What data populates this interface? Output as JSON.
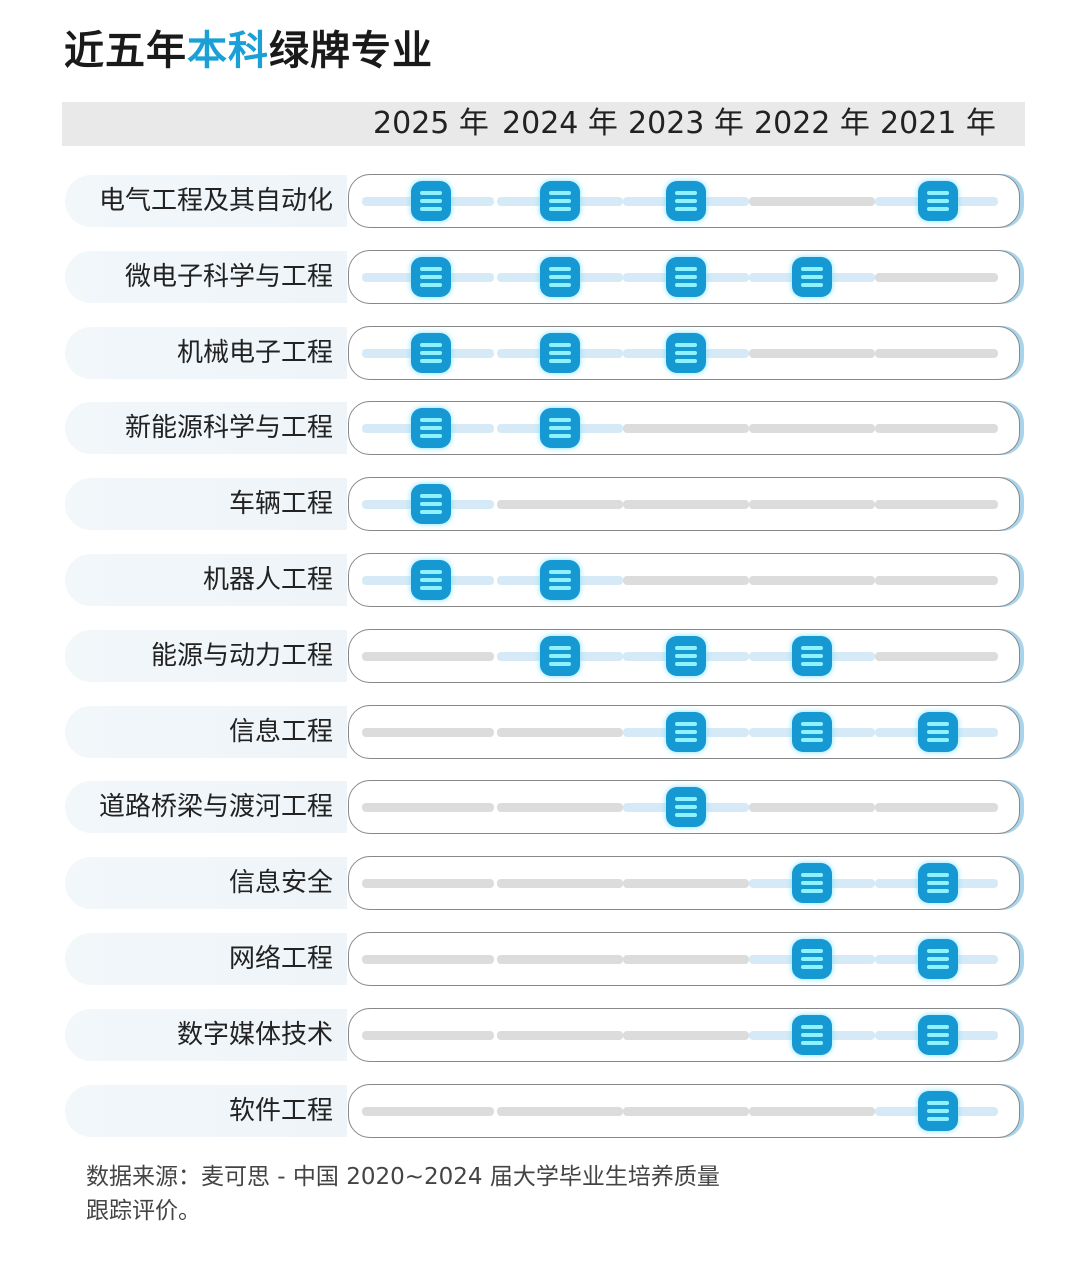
{
  "title": {
    "part1": "近五年",
    "highlight": "本科",
    "part2": "绿牌专业"
  },
  "colors": {
    "accent": "#1698d2",
    "track_active": "#d5eaf6",
    "track_inactive": "#dcdcdc"
  },
  "chart_data": {
    "type": "table",
    "columns": [
      "2025 年",
      "2024 年",
      "2023 年",
      "2022 年",
      "2021 年"
    ],
    "rows": [
      {
        "label": "电气工程及其自动化",
        "marks": [
          true,
          true,
          true,
          false,
          true
        ]
      },
      {
        "label": "微电子科学与工程",
        "marks": [
          true,
          true,
          true,
          true,
          false
        ]
      },
      {
        "label": "机械电子工程",
        "marks": [
          true,
          true,
          true,
          false,
          false
        ]
      },
      {
        "label": "新能源科学与工程",
        "marks": [
          true,
          true,
          false,
          false,
          false
        ]
      },
      {
        "label": "车辆工程",
        "marks": [
          true,
          false,
          false,
          false,
          false
        ]
      },
      {
        "label": "机器人工程",
        "marks": [
          true,
          true,
          false,
          false,
          false
        ]
      },
      {
        "label": "能源与动力工程",
        "marks": [
          false,
          true,
          true,
          true,
          false
        ]
      },
      {
        "label": "信息工程",
        "marks": [
          false,
          false,
          true,
          true,
          true
        ]
      },
      {
        "label": "道路桥梁与渡河工程",
        "marks": [
          false,
          false,
          true,
          false,
          false
        ]
      },
      {
        "label": "信息安全",
        "marks": [
          false,
          false,
          false,
          true,
          true
        ]
      },
      {
        "label": "网络工程",
        "marks": [
          false,
          false,
          false,
          true,
          true
        ]
      },
      {
        "label": "数字媒体技术",
        "marks": [
          false,
          false,
          false,
          true,
          true
        ]
      },
      {
        "label": "软件工程",
        "marks": [
          false,
          false,
          false,
          false,
          true
        ]
      }
    ],
    "mark_icon": "list-badge-icon"
  },
  "footnote": {
    "line1": "数据来源：麦可思 - 中国 2020~2024 届大学毕业生培养质量",
    "line2": "跟踪评价。"
  }
}
